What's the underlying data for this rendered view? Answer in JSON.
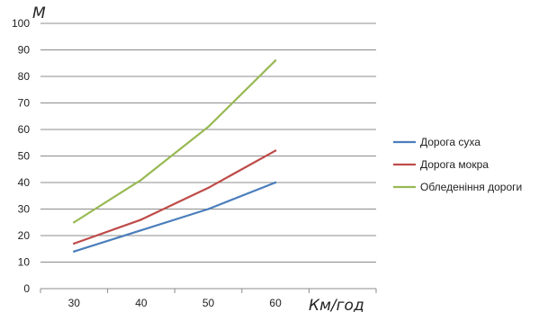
{
  "chart_data": {
    "type": "line",
    "title": "",
    "xlabel": "Км/год",
    "ylabel": "М",
    "categories": [
      "30",
      "40",
      "50",
      "60"
    ],
    "x_tick_labels": [
      "30",
      "40",
      "50",
      "60"
    ],
    "y_tick_labels": [
      "0",
      "10",
      "20",
      "30",
      "40",
      "50",
      "60",
      "70",
      "80",
      "90",
      "100"
    ],
    "ylim": [
      0,
      100
    ],
    "y_step": 10,
    "grid": "horizontal",
    "legend_position": "right",
    "series": [
      {
        "name": "Дорога суха",
        "color": "#4a7ebb",
        "values": [
          14,
          22,
          30,
          40
        ]
      },
      {
        "name": "Дорога мокра",
        "color": "#be4b48",
        "values": [
          17,
          26,
          38,
          52
        ]
      },
      {
        "name": "Обледеніння дороги",
        "color": "#98b954",
        "values": [
          25,
          41,
          61,
          86
        ]
      }
    ]
  }
}
